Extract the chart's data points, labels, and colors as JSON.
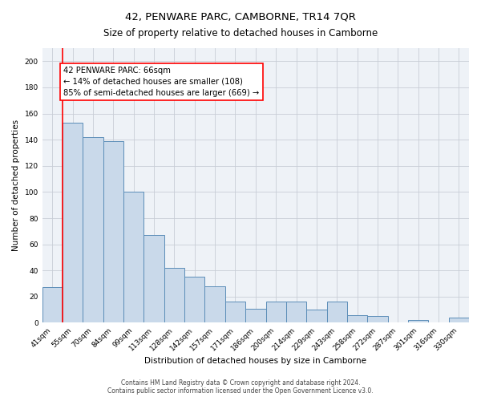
{
  "title": "42, PENWARE PARC, CAMBORNE, TR14 7QR",
  "subtitle": "Size of property relative to detached houses in Camborne",
  "xlabel": "Distribution of detached houses by size in Camborne",
  "ylabel": "Number of detached properties",
  "bar_labels": [
    "41sqm",
    "55sqm",
    "70sqm",
    "84sqm",
    "99sqm",
    "113sqm",
    "128sqm",
    "142sqm",
    "157sqm",
    "171sqm",
    "186sqm",
    "200sqm",
    "214sqm",
    "229sqm",
    "243sqm",
    "258sqm",
    "272sqm",
    "287sqm",
    "301sqm",
    "316sqm",
    "330sqm"
  ],
  "bar_values": [
    27,
    153,
    142,
    139,
    100,
    67,
    42,
    35,
    28,
    16,
    11,
    16,
    16,
    10,
    16,
    6,
    5,
    0,
    2,
    0,
    4
  ],
  "bar_color": "#c9d9ea",
  "bar_edgecolor": "#5b8db8",
  "ylim": [
    0,
    210
  ],
  "yticks": [
    0,
    20,
    40,
    60,
    80,
    100,
    120,
    140,
    160,
    180,
    200
  ],
  "annotation_line1": "42 PENWARE PARC: 66sqm",
  "annotation_line2": "← 14% of detached houses are smaller (108)",
  "annotation_line3": "85% of semi-detached houses are larger (669) →",
  "redline_x": 0.5,
  "footnote1": "Contains HM Land Registry data © Crown copyright and database right 2024.",
  "footnote2": "Contains public sector information licensed under the Open Government Licence v3.0.",
  "background_color": "#ffffff",
  "plot_background": "#eef2f7",
  "grid_color": "#c8cdd6",
  "title_fontsize": 9.5,
  "subtitle_fontsize": 8.5,
  "tick_fontsize": 6.5,
  "axis_label_fontsize": 7.5,
  "annotation_fontsize": 7.2,
  "footnote_fontsize": 5.5
}
